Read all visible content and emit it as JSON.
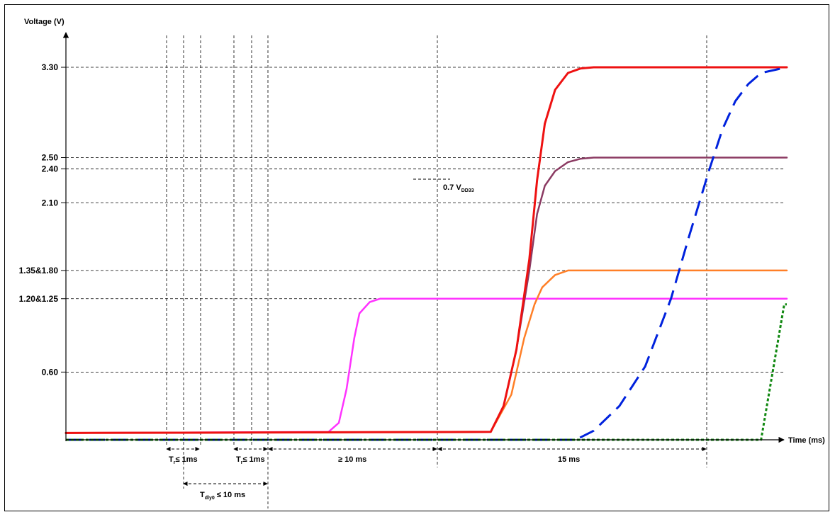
{
  "chart_data": {
    "type": "line",
    "ylabel": "Voltage (V)",
    "xlabel": "Time (ms)",
    "y_ticks": [
      {
        "value": 3.3,
        "label": "3.30"
      },
      {
        "value": 2.5,
        "label": "2.50"
      },
      {
        "value": 2.4,
        "label": "2.40"
      },
      {
        "value": 2.1,
        "label": "2.10"
      },
      {
        "value": 1.5,
        "label": "1.35&1.80"
      },
      {
        "value": 1.25,
        "label": "1.20&1.25"
      },
      {
        "value": 0.6,
        "label": "0.60"
      }
    ],
    "grid": "dashed",
    "series": [
      {
        "color": "#ff33ff",
        "dash": "solid",
        "width": 2.5,
        "x": [
          0.0,
          10.2,
          10.6,
          10.9,
          11.2,
          11.4,
          11.8,
          12.2,
          13.0,
          28.0
        ],
        "y": [
          0.06,
          0.07,
          0.15,
          0.45,
          0.9,
          1.12,
          1.22,
          1.25,
          1.25,
          1.25
        ]
      },
      {
        "color": "#ff7f27",
        "dash": "solid",
        "width": 2.5,
        "x": [
          0.0,
          16.5,
          17.3,
          17.8,
          18.2,
          18.5,
          19.0,
          19.5,
          20.3,
          28.0
        ],
        "y": [
          0.06,
          0.07,
          0.4,
          0.9,
          1.2,
          1.35,
          1.46,
          1.5,
          1.5,
          1.5
        ]
      },
      {
        "color": "#8b3a62",
        "dash": "solid",
        "width": 2.5,
        "x": [
          0.0,
          16.5,
          17.0,
          17.5,
          18.0,
          18.3,
          18.6,
          19.0,
          19.5,
          20.0,
          20.5,
          28.0
        ],
        "y": [
          0.06,
          0.07,
          0.3,
          0.8,
          1.5,
          2.0,
          2.25,
          2.38,
          2.46,
          2.49,
          2.5,
          2.5
        ]
      },
      {
        "color": "#ee1111",
        "dash": "solid",
        "width": 3,
        "x": [
          0.0,
          16.5,
          17.0,
          17.5,
          18.0,
          18.3,
          18.6,
          19.0,
          19.5,
          20.0,
          20.5,
          28.0
        ],
        "y": [
          0.06,
          0.07,
          0.3,
          0.8,
          1.6,
          2.3,
          2.8,
          3.1,
          3.25,
          3.29,
          3.3,
          3.3
        ]
      },
      {
        "color": "#0022dd",
        "dash": "long",
        "width": 3,
        "x": [
          0.0,
          19.8,
          20.5,
          21.5,
          22.5,
          23.5,
          24.2,
          25.0,
          25.5,
          26.0,
          26.5,
          27.0,
          28.0
        ],
        "y": [
          0.0,
          0.0,
          0.08,
          0.3,
          0.65,
          1.25,
          1.8,
          2.4,
          2.75,
          3.0,
          3.15,
          3.25,
          3.3
        ]
      },
      {
        "color": "#118811",
        "dash": "dot",
        "width": 3,
        "x": [
          0.0,
          27.0,
          27.9,
          28.0
        ],
        "y": [
          0.0,
          0.0,
          1.2,
          1.2
        ]
      }
    ],
    "annotations": {
      "v07": {
        "main": "0.7 V",
        "sub": "DD33"
      },
      "tr1": {
        "main": "T",
        "sub": "r",
        "rest": "≤ 1ms"
      },
      "tr2": {
        "main": "T",
        "sub": "r",
        "rest": "≤ 1ms"
      },
      "ge10": "≥ 10 ms",
      "ms15": "15 ms",
      "tdly": {
        "main": "T",
        "sub": "dly0",
        "rest": " ≤ 10 ms"
      }
    }
  }
}
